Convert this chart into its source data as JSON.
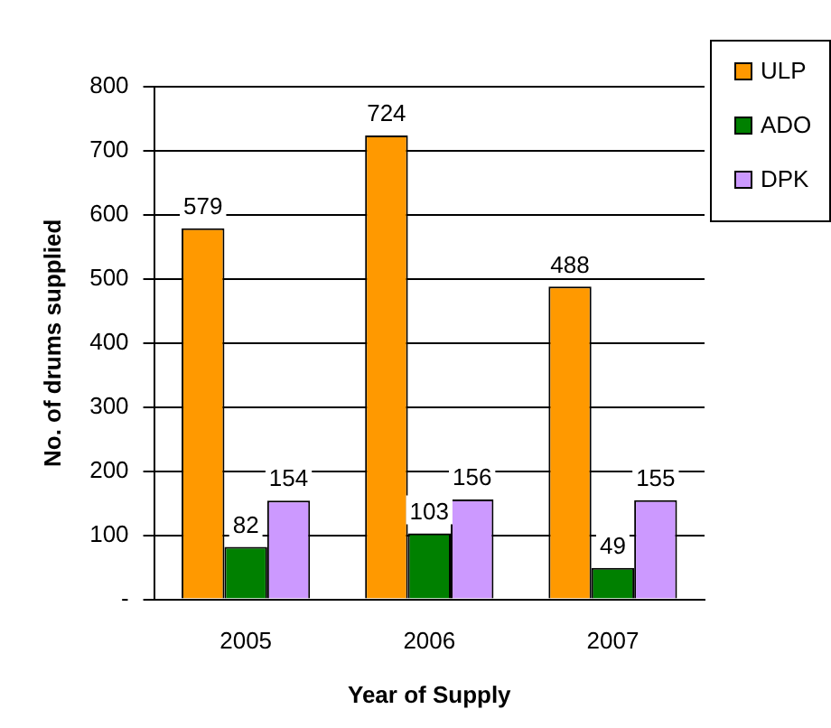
{
  "chart_data": {
    "type": "bar",
    "xlabel": "Year of Supply",
    "ylabel": "No. of drums supplied",
    "categories": [
      "2005",
      "2006",
      "2007"
    ],
    "series": [
      {
        "name": "ULP",
        "color": "#ff9900",
        "values": [
          579,
          724,
          488
        ]
      },
      {
        "name": "ADO",
        "color": "#008000",
        "values": [
          82,
          103,
          49
        ]
      },
      {
        "name": "DPK",
        "color": "#cc99ff",
        "values": [
          154,
          156,
          155
        ]
      }
    ],
    "ylim": [
      0,
      800
    ],
    "yticks": [
      {
        "value": 0,
        "label": "-"
      },
      100,
      200,
      300,
      400,
      500,
      600,
      700,
      800
    ],
    "grid": "y",
    "legend": "top right",
    "data_labels": true
  }
}
